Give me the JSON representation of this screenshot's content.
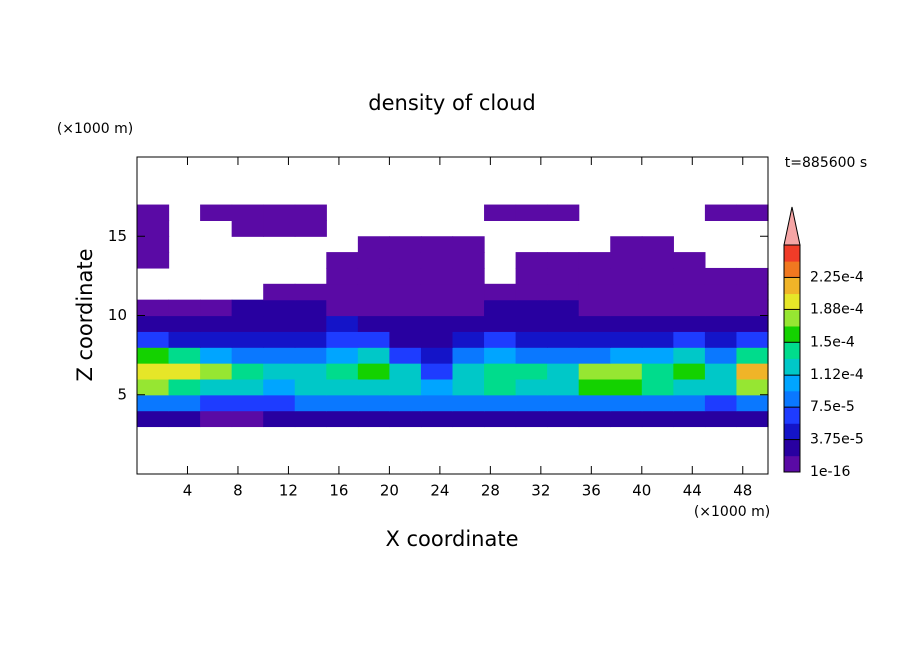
{
  "chart_data": {
    "type": "contour",
    "title": "density of cloud",
    "x_label": "X coordinate",
    "y_label": "Z coordinate",
    "x_unit": "(×1000 m)",
    "y_unit": "(×1000 m)",
    "time_label": "t=885600 s",
    "xlim": [
      0,
      50
    ],
    "ylim": [
      0,
      20
    ],
    "xticks": [
      4,
      8,
      12,
      16,
      20,
      24,
      28,
      32,
      36,
      40,
      44,
      48
    ],
    "yticks": [
      5,
      10,
      15
    ],
    "x": [
      1.25,
      3.75,
      6.25,
      8.75,
      11.25,
      13.75,
      16.25,
      18.75,
      21.25,
      23.75,
      26.25,
      28.75,
      31.25,
      33.75,
      36.25,
      38.75,
      41.25,
      43.75,
      46.25,
      48.75
    ],
    "y": [
      3.5,
      4.5,
      5.5,
      6.5,
      7.5,
      8.5,
      9.5,
      10.5,
      11.5,
      12.5,
      13.5,
      14.5,
      15.5,
      16.5
    ],
    "values": [
      [
        2.5e-05,
        2e-05,
        1.5e-05,
        1.5e-05,
        2e-05,
        2e-05,
        2.5e-05,
        2e-05,
        2.5e-05,
        3e-05,
        2e-05,
        2e-05,
        2.5e-05,
        2e-05,
        2e-05,
        2.5e-05,
        2e-05,
        2.5e-05,
        3e-05,
        2.5e-05
      ],
      [
        9e-05,
        8e-05,
        7e-05,
        6e-05,
        7e-05,
        8e-05,
        9e-05,
        8e-05,
        9e-05,
        8e-05,
        8e-05,
        9e-05,
        9e-05,
        8e-05,
        9e-05,
        8e-05,
        8e-05,
        9e-05,
        7e-05,
        9e-05
      ],
      [
        0.00017,
        0.00015,
        0.00013,
        0.00012,
        0.00011,
        0.00012,
        0.00013,
        0.00013,
        0.00012,
        0.00011,
        0.00013,
        0.00014,
        0.00013,
        0.00012,
        0.00016,
        0.00016,
        0.00014,
        0.00013,
        0.00013,
        0.00017
      ],
      [
        0.0002,
        0.00019,
        0.00017,
        0.00014,
        0.00013,
        0.00013,
        0.00015,
        0.00016,
        0.00012,
        6e-05,
        0.00013,
        0.00015,
        0.00014,
        0.00013,
        0.00018,
        0.00018,
        0.00014,
        0.00016,
        0.00012,
        0.00021
      ],
      [
        0.00016,
        0.00015,
        0.00011,
        9e-05,
        8e-05,
        9e-05,
        0.00011,
        0.00012,
        6e-05,
        4e-05,
        9e-05,
        0.0001,
        9e-05,
        8e-05,
        9e-05,
        0.0001,
        0.0001,
        0.00013,
        9e-05,
        0.00015
      ],
      [
        6e-05,
        5e-05,
        5e-05,
        4e-05,
        5e-05,
        5e-05,
        6e-05,
        7e-05,
        3e-05,
        3e-05,
        5e-05,
        6e-05,
        5e-05,
        4e-05,
        5e-05,
        5e-05,
        4e-05,
        6e-05,
        5e-05,
        6e-05
      ],
      [
        3e-05,
        3e-05,
        2.5e-05,
        3e-05,
        3e-05,
        3e-05,
        4e-05,
        3e-05,
        2e-05,
        2e-05,
        2.5e-05,
        3e-05,
        3e-05,
        2.5e-05,
        2.5e-05,
        2e-05,
        2e-05,
        3e-05,
        3e-05,
        3e-05
      ],
      [
        1e-05,
        1e-05,
        1.5e-05,
        2e-05,
        2e-05,
        2e-05,
        1.5e-05,
        1.5e-05,
        1e-05,
        1e-05,
        1e-05,
        2e-05,
        2e-05,
        2e-05,
        1.5e-05,
        1e-05,
        1e-05,
        1e-05,
        1e-05,
        1e-05
      ],
      [
        null,
        null,
        null,
        null,
        5e-06,
        5e-06,
        5e-06,
        5e-06,
        5e-06,
        5e-06,
        5e-06,
        5e-06,
        5e-06,
        5e-06,
        5e-06,
        5e-06,
        5e-06,
        5e-06,
        5e-06,
        5e-06
      ],
      [
        null,
        null,
        null,
        null,
        null,
        null,
        5e-06,
        5e-06,
        5e-06,
        5e-06,
        5e-06,
        null,
        5e-06,
        5e-06,
        5e-06,
        5e-06,
        5e-06,
        5e-06,
        5e-06,
        5e-06
      ],
      [
        5e-06,
        null,
        null,
        null,
        null,
        null,
        5e-06,
        5e-06,
        5e-06,
        5e-06,
        5e-06,
        null,
        5e-06,
        5e-06,
        5e-06,
        5e-06,
        5e-06,
        5e-06,
        null,
        null
      ],
      [
        5e-06,
        null,
        null,
        null,
        null,
        null,
        null,
        5e-06,
        5e-06,
        5e-06,
        5e-06,
        null,
        null,
        null,
        null,
        5e-06,
        5e-06,
        null,
        null,
        null
      ],
      [
        5e-06,
        null,
        null,
        5e-06,
        5e-06,
        5e-06,
        null,
        null,
        null,
        null,
        null,
        null,
        null,
        null,
        null,
        null,
        null,
        null,
        null,
        null
      ],
      [
        5e-06,
        null,
        5e-06,
        5e-06,
        5e-06,
        5e-06,
        null,
        null,
        null,
        null,
        null,
        5e-06,
        5e-06,
        5e-06,
        null,
        null,
        null,
        null,
        5e-06,
        5e-06
      ]
    ],
    "clim": [
      1e-16,
      0.0002625
    ],
    "colors": [
      "#5a0aa5",
      "#2800a0",
      "#1414c8",
      "#1e3cff",
      "#0a78ff",
      "#00a5ff",
      "#00c8c8",
      "#00dc8c",
      "#14d200",
      "#96e632",
      "#e6e628",
      "#f0b428",
      "#f07820",
      "#f03c28"
    ],
    "extend_color": "#f5a5a5",
    "cticks": [
      {
        "value": 1e-16,
        "label": "1e-16"
      },
      {
        "value": 3.75e-05,
        "label": "3.75e-5"
      },
      {
        "value": 7.5e-05,
        "label": "7.5e-5"
      },
      {
        "value": 0.000112,
        "label": "1.12e-4"
      },
      {
        "value": 0.00015,
        "label": "1.5e-4"
      },
      {
        "value": 0.000188,
        "label": "1.88e-4"
      },
      {
        "value": 0.000225,
        "label": "2.25e-4"
      }
    ]
  }
}
